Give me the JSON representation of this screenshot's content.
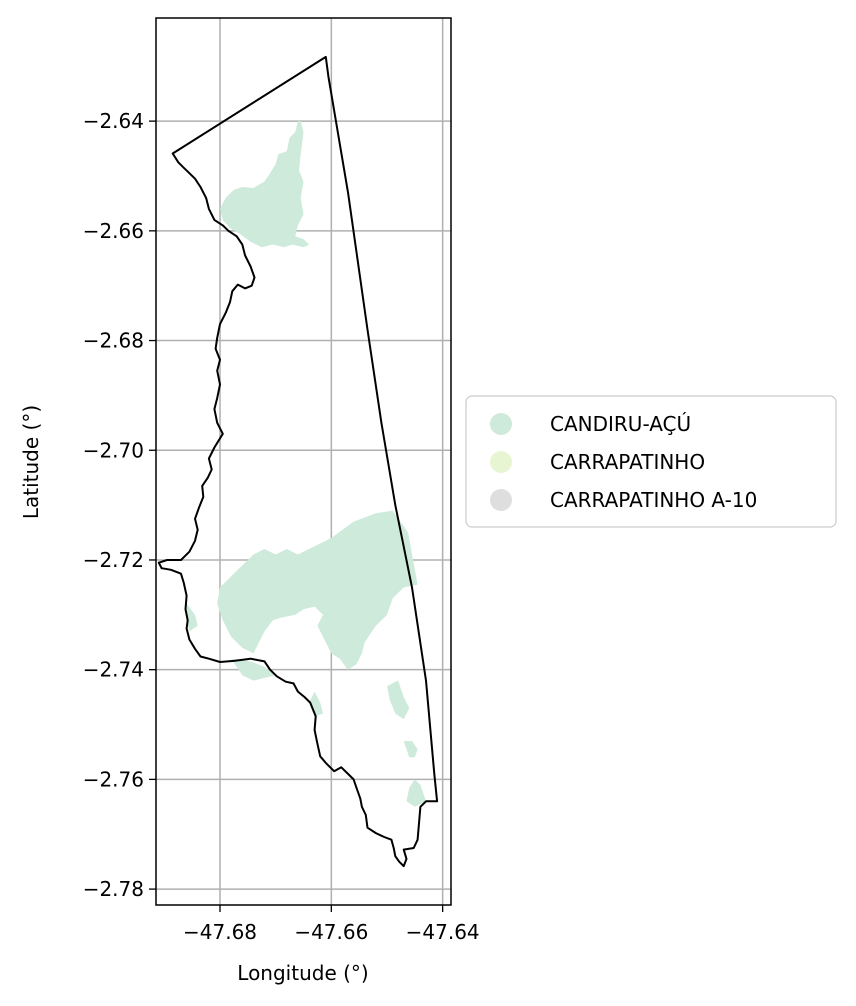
{
  "chart_data": {
    "type": "map",
    "title": "",
    "xlabel": "Longitude (°)",
    "ylabel": "Latitude (°)",
    "xlim": [
      -47.6915,
      -47.6385
    ],
    "ylim": [
      -2.7829,
      -2.6212
    ],
    "x_ticks": [
      {
        "value": -47.68,
        "label": "−47.68"
      },
      {
        "value": -47.66,
        "label": "−47.66"
      },
      {
        "value": -47.64,
        "label": "−47.64"
      }
    ],
    "y_ticks": [
      {
        "value": -2.64,
        "label": "−2.64"
      },
      {
        "value": -2.66,
        "label": "−2.66"
      },
      {
        "value": -2.68,
        "label": "−2.68"
      },
      {
        "value": -2.7,
        "label": "−2.70"
      },
      {
        "value": -2.72,
        "label": "−2.72"
      },
      {
        "value": -2.74,
        "label": "−2.74"
      },
      {
        "value": -2.76,
        "label": "−2.76"
      },
      {
        "value": -2.78,
        "label": "−2.78"
      }
    ],
    "grid": true,
    "legend_position": "right",
    "legend": [
      {
        "label": "CANDIRU-AÇÚ",
        "color": "#cdeadb"
      },
      {
        "label": "CARRAPATINHO",
        "color": "#e8f5d3"
      },
      {
        "label": "CARRAPATINHO A-10",
        "color": "#dedede"
      }
    ],
    "boundary_color": "#000000",
    "grid_color": "#b0b0b0",
    "boundary": [
      [
        -47.6885,
        -2.6459
      ],
      [
        -47.661,
        -2.6283
      ],
      [
        -47.6605,
        -2.632
      ],
      [
        -47.657,
        -2.653
      ],
      [
        -47.6535,
        -2.678
      ],
      [
        -47.651,
        -2.695
      ],
      [
        -47.6485,
        -2.71
      ],
      [
        -47.6455,
        -2.725
      ],
      [
        -47.643,
        -2.742
      ],
      [
        -47.6415,
        -2.759
      ],
      [
        -47.641,
        -2.764
      ],
      [
        -47.643,
        -2.764
      ],
      [
        -47.644,
        -2.765
      ],
      [
        -47.6445,
        -2.771
      ],
      [
        -47.6452,
        -2.7725
      ],
      [
        -47.647,
        -2.7728
      ],
      [
        -47.6465,
        -2.7745
      ],
      [
        -47.647,
        -2.7758
      ],
      [
        -47.6478,
        -2.775
      ],
      [
        -47.6485,
        -2.774
      ],
      [
        -47.6488,
        -2.7725
      ],
      [
        -47.6492,
        -2.771
      ],
      [
        -47.6505,
        -2.7705
      ],
      [
        -47.652,
        -2.7698
      ],
      [
        -47.6535,
        -2.7688
      ],
      [
        -47.6538,
        -2.7665
      ],
      [
        -47.6545,
        -2.765
      ],
      [
        -47.6548,
        -2.7635
      ],
      [
        -47.6555,
        -2.7615
      ],
      [
        -47.656,
        -2.76
      ],
      [
        -47.657,
        -2.759
      ],
      [
        -47.6582,
        -2.7578
      ],
      [
        -47.6595,
        -2.7585
      ],
      [
        -47.661,
        -2.757
      ],
      [
        -47.662,
        -2.7558
      ],
      [
        -47.6625,
        -2.7535
      ],
      [
        -47.663,
        -2.751
      ],
      [
        -47.6628,
        -2.7485
      ],
      [
        -47.6638,
        -2.746
      ],
      [
        -47.6648,
        -2.745
      ],
      [
        -47.666,
        -2.744
      ],
      [
        -47.6668,
        -2.7425
      ],
      [
        -47.6682,
        -2.7422
      ],
      [
        -47.6698,
        -2.7412
      ],
      [
        -47.671,
        -2.74
      ],
      [
        -47.672,
        -2.7385
      ],
      [
        -47.6745,
        -2.738
      ],
      [
        -47.6775,
        -2.7384
      ],
      [
        -47.68,
        -2.7386
      ],
      [
        -47.682,
        -2.738
      ],
      [
        -47.6835,
        -2.7376
      ],
      [
        -47.6845,
        -2.7362
      ],
      [
        -47.6855,
        -2.7345
      ],
      [
        -47.686,
        -2.7325
      ],
      [
        -47.6858,
        -2.731
      ],
      [
        -47.6862,
        -2.729
      ],
      [
        -47.686,
        -2.7265
      ],
      [
        -47.6865,
        -2.7242
      ],
      [
        -47.687,
        -2.7225
      ],
      [
        -47.6888,
        -2.7218
      ],
      [
        -47.6905,
        -2.7215
      ],
      [
        -47.691,
        -2.7205
      ],
      [
        -47.6895,
        -2.72
      ],
      [
        -47.687,
        -2.72
      ],
      [
        -47.6855,
        -2.7185
      ],
      [
        -47.6845,
        -2.7165
      ],
      [
        -47.684,
        -2.7145
      ],
      [
        -47.6845,
        -2.7125
      ],
      [
        -47.6838,
        -2.7105
      ],
      [
        -47.683,
        -2.7085
      ],
      [
        -47.6832,
        -2.7065
      ],
      [
        -47.6822,
        -2.705
      ],
      [
        -47.6815,
        -2.7035
      ],
      [
        -47.682,
        -2.7015
      ],
      [
        -47.681,
        -2.6995
      ],
      [
        -47.6795,
        -2.697
      ],
      [
        -47.6805,
        -2.695
      ],
      [
        -47.681,
        -2.6925
      ],
      [
        -47.6805,
        -2.6905
      ],
      [
        -47.68,
        -2.688
      ],
      [
        -47.6805,
        -2.6855
      ],
      [
        -47.68,
        -2.6835
      ],
      [
        -47.6808,
        -2.6815
      ],
      [
        -47.6805,
        -2.6795
      ],
      [
        -47.68,
        -2.677
      ],
      [
        -47.679,
        -2.675
      ],
      [
        -47.6782,
        -2.673
      ],
      [
        -47.6778,
        -2.671
      ],
      [
        -47.6768,
        -2.6698
      ],
      [
        -47.6755,
        -2.6705
      ],
      [
        -47.6743,
        -2.67
      ],
      [
        -47.6738,
        -2.6685
      ],
      [
        -47.6745,
        -2.6665
      ],
      [
        -47.6755,
        -2.6645
      ],
      [
        -47.676,
        -2.6625
      ],
      [
        -47.677,
        -2.661
      ],
      [
        -47.6785,
        -2.66
      ],
      [
        -47.6795,
        -2.659
      ],
      [
        -47.681,
        -2.658
      ],
      [
        -47.682,
        -2.656
      ],
      [
        -47.6825,
        -2.654
      ],
      [
        -47.6835,
        -2.652
      ],
      [
        -47.6845,
        -2.6505
      ],
      [
        -47.6855,
        -2.6495
      ],
      [
        -47.6865,
        -2.6485
      ],
      [
        -47.6875,
        -2.6475
      ],
      [
        -47.6885,
        -2.6459
      ]
    ],
    "regions": [
      {
        "name": "CANDIRU-AÇÚ",
        "polygons": [
          [
            [
              -47.68,
              -2.656
            ],
            [
              -47.679,
              -2.654
            ],
            [
              -47.6775,
              -2.6525
            ],
            [
              -47.676,
              -2.652
            ],
            [
              -47.674,
              -2.6522
            ],
            [
              -47.672,
              -2.651
            ],
            [
              -47.671,
              -2.6495
            ],
            [
              -47.67,
              -2.6478
            ],
            [
              -47.6695,
              -2.646
            ],
            [
              -47.668,
              -2.6455
            ],
            [
              -47.6675,
              -2.643
            ],
            [
              -47.6665,
              -2.642
            ],
            [
              -47.666,
              -2.64
            ],
            [
              -47.6655,
              -2.64
            ],
            [
              -47.665,
              -2.642
            ],
            [
              -47.6655,
              -2.646
            ],
            [
              -47.6658,
              -2.649
            ],
            [
              -47.665,
              -2.651
            ],
            [
              -47.6655,
              -2.654
            ],
            [
              -47.665,
              -2.657
            ],
            [
              -47.666,
              -2.659
            ],
            [
              -47.6665,
              -2.661
            ],
            [
              -47.665,
              -2.6615
            ],
            [
              -47.664,
              -2.6625
            ],
            [
              -47.665,
              -2.663
            ],
            [
              -47.667,
              -2.6625
            ],
            [
              -47.6685,
              -2.663
            ],
            [
              -47.6705,
              -2.6625
            ],
            [
              -47.6725,
              -2.663
            ],
            [
              -47.6745,
              -2.662
            ],
            [
              -47.6765,
              -2.6605
            ],
            [
              -47.6782,
              -2.6595
            ],
            [
              -47.6795,
              -2.658
            ]
          ],
          [
            [
              -47.658,
              -2.7145
            ],
            [
              -47.656,
              -2.713
            ],
            [
              -47.652,
              -2.7115
            ],
            [
              -47.649,
              -2.711
            ],
            [
              -47.6462,
              -2.715
            ],
            [
              -47.6445,
              -2.7245
            ],
            [
              -47.647,
              -2.725
            ],
            [
              -47.649,
              -2.727
            ],
            [
              -47.65,
              -2.73
            ],
            [
              -47.652,
              -2.732
            ],
            [
              -47.654,
              -2.735
            ],
            [
              -47.6545,
              -2.737
            ],
            [
              -47.6555,
              -2.739
            ],
            [
              -47.657,
              -2.74
            ],
            [
              -47.6585,
              -2.738
            ],
            [
              -47.66,
              -2.737
            ],
            [
              -47.6615,
              -2.734
            ],
            [
              -47.6625,
              -2.732
            ],
            [
              -47.6615,
              -2.73
            ],
            [
              -47.663,
              -2.7285
            ],
            [
              -47.665,
              -2.729
            ],
            [
              -47.6665,
              -2.73
            ],
            [
              -47.669,
              -2.7305
            ],
            [
              -47.6705,
              -2.731
            ],
            [
              -47.672,
              -2.733
            ],
            [
              -47.673,
              -2.735
            ],
            [
              -47.674,
              -2.737
            ],
            [
              -47.676,
              -2.736
            ],
            [
              -47.678,
              -2.734
            ],
            [
              -47.6795,
              -2.731
            ],
            [
              -47.6805,
              -2.728
            ],
            [
              -47.68,
              -2.725
            ],
            [
              -47.678,
              -2.723
            ],
            [
              -47.676,
              -2.721
            ],
            [
              -47.674,
              -2.719
            ],
            [
              -47.672,
              -2.718
            ],
            [
              -47.67,
              -2.719
            ],
            [
              -47.668,
              -2.718
            ],
            [
              -47.666,
              -2.719
            ],
            [
              -47.664,
              -2.718
            ],
            [
              -47.662,
              -2.717
            ],
            [
              -47.66,
              -2.716
            ]
          ],
          [
            [
              -47.678,
              -2.738
            ],
            [
              -47.677,
              -2.7395
            ],
            [
              -47.676,
              -2.741
            ],
            [
              -47.674,
              -2.742
            ],
            [
              -47.672,
              -2.7415
            ],
            [
              -47.67,
              -2.741
            ],
            [
              -47.672,
              -2.7395
            ],
            [
              -47.6745,
              -2.7385
            ]
          ],
          [
            [
              -47.648,
              -2.742
            ],
            [
              -47.647,
              -2.745
            ],
            [
              -47.646,
              -2.747
            ],
            [
              -47.647,
              -2.749
            ],
            [
              -47.6485,
              -2.748
            ],
            [
              -47.6495,
              -2.7455
            ],
            [
              -47.65,
              -2.743
            ]
          ],
          [
            [
              -47.647,
              -2.753
            ],
            [
              -47.646,
              -2.756
            ],
            [
              -47.645,
              -2.756
            ],
            [
              -47.6445,
              -2.7545
            ],
            [
              -47.6455,
              -2.753
            ]
          ],
          [
            [
              -47.645,
              -2.76
            ],
            [
              -47.644,
              -2.761
            ],
            [
              -47.643,
              -2.764
            ],
            [
              -47.645,
              -2.765
            ],
            [
              -47.6465,
              -2.764
            ],
            [
              -47.646,
              -2.7615
            ]
          ],
          [
            [
              -47.663,
              -2.744
            ],
            [
              -47.662,
              -2.746
            ],
            [
              -47.6615,
              -2.748
            ],
            [
              -47.663,
              -2.7485
            ],
            [
              -47.664,
              -2.746
            ]
          ],
          [
            [
              -47.686,
              -2.728
            ],
            [
              -47.6845,
              -2.73
            ],
            [
              -47.684,
              -2.732
            ],
            [
              -47.6855,
              -2.733
            ],
            [
              -47.6862,
              -2.73
            ]
          ]
        ]
      }
    ]
  }
}
